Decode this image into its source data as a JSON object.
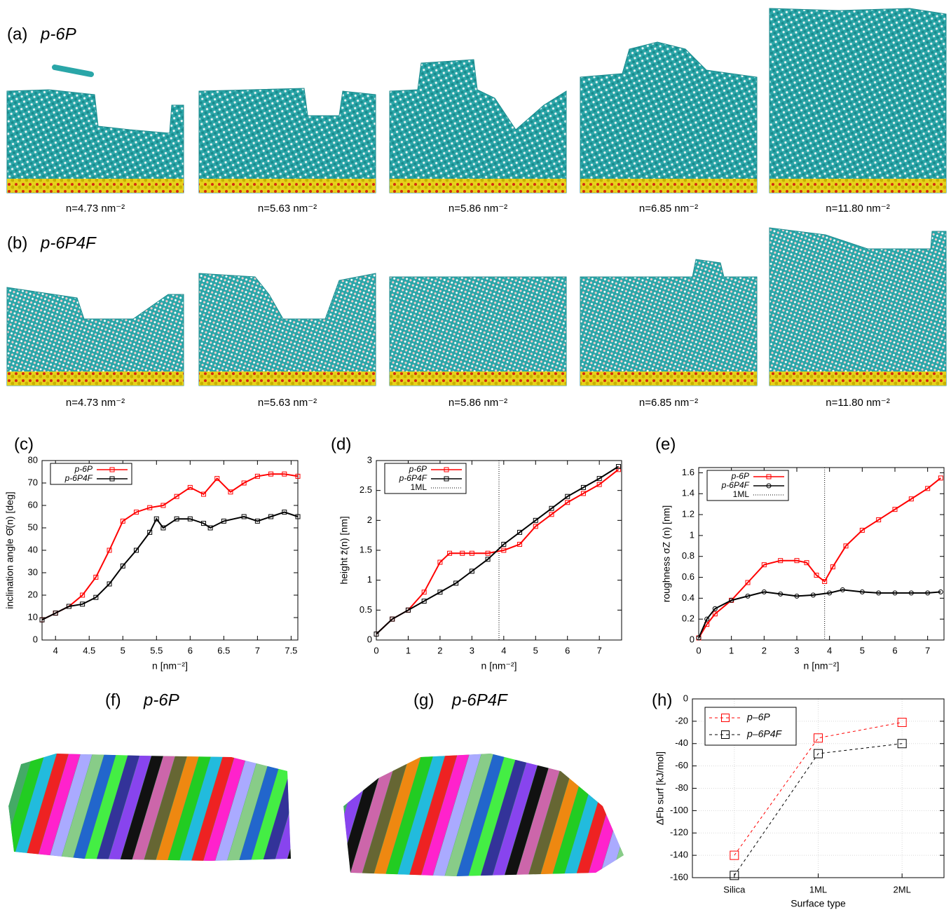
{
  "rows": [
    {
      "label": "(a)",
      "molecule": "p-6P",
      "captions": [
        "n=4.73 nm⁻²",
        "n=5.63 nm⁻²",
        "n=5.86 nm⁻²",
        "n=6.85 nm⁻²",
        "n=11.80 nm⁻²"
      ]
    },
    {
      "label": "(b)",
      "molecule": "p-6P4F",
      "captions": [
        "n=4.73 nm⁻²",
        "n=5.63 nm⁻²",
        "n=5.86 nm⁻²",
        "n=6.85 nm⁻²",
        "n=11.80 nm⁻²"
      ]
    }
  ],
  "snapshots": [
    {
      "label": "(f)",
      "molecule": "p-6P"
    },
    {
      "label": "(g)",
      "molecule": "p-6P4F"
    }
  ],
  "chart_data": [
    {
      "type": "line",
      "panel": "(c)",
      "xlabel": "n [nm⁻²]",
      "ylabel": "inclination angle Θ̄(n) [deg]",
      "xlim": [
        3.8,
        7.6
      ],
      "ylim": [
        0,
        80
      ],
      "xticks": [
        4,
        4.5,
        5,
        5.5,
        6,
        6.5,
        7,
        7.5
      ],
      "yticks": [
        0,
        10,
        20,
        30,
        40,
        50,
        60,
        70,
        80
      ],
      "grid": false,
      "legend": "upper left",
      "series": [
        {
          "name": "p-6P",
          "color": "#ff0000",
          "marker": "square",
          "x": [
            3.8,
            4.0,
            4.2,
            4.4,
            4.6,
            4.8,
            5.0,
            5.2,
            5.4,
            5.6,
            5.8,
            6.0,
            6.2,
            6.4,
            6.6,
            6.8,
            7.0,
            7.2,
            7.4,
            7.6
          ],
          "values": [
            9,
            12,
            15,
            20,
            28,
            40,
            53,
            57,
            59,
            60,
            64,
            68,
            65,
            72,
            66,
            70,
            73,
            74,
            74,
            73
          ]
        },
        {
          "name": "p-6P4F",
          "color": "#000000",
          "marker": "square",
          "x": [
            3.8,
            4.0,
            4.2,
            4.4,
            4.6,
            4.8,
            5.0,
            5.2,
            5.4,
            5.5,
            5.6,
            5.8,
            6.0,
            6.2,
            6.3,
            6.5,
            6.8,
            7.0,
            7.2,
            7.4,
            7.6
          ],
          "values": [
            9,
            12,
            15,
            16,
            19,
            25,
            33,
            40,
            48,
            54,
            50,
            54,
            54,
            52,
            50,
            53,
            55,
            53,
            55,
            57,
            55
          ]
        }
      ]
    },
    {
      "type": "line",
      "panel": "(d)",
      "xlabel": "n [nm⁻²]",
      "ylabel": "height z̄(n) [nm]",
      "xlim": [
        0,
        7.7
      ],
      "ylim": [
        0,
        3
      ],
      "xticks": [
        0,
        1,
        2,
        3,
        4,
        5,
        6,
        7
      ],
      "yticks": [
        0,
        0.5,
        1,
        1.5,
        2,
        2.5,
        3
      ],
      "grid": false,
      "legend": "upper left",
      "vline": {
        "name": "1ML",
        "x": 3.85,
        "color": "#000000"
      },
      "series": [
        {
          "name": "p-6P",
          "color": "#ff0000",
          "marker": "square",
          "x": [
            0,
            0.5,
            1,
            1.5,
            2,
            2.3,
            2.7,
            3,
            3.5,
            4,
            4.5,
            5,
            5.5,
            6,
            6.5,
            7,
            7.6
          ],
          "values": [
            0.1,
            0.35,
            0.5,
            0.8,
            1.3,
            1.45,
            1.45,
            1.45,
            1.45,
            1.5,
            1.6,
            1.9,
            2.1,
            2.3,
            2.45,
            2.6,
            2.85
          ]
        },
        {
          "name": "p-6P4F",
          "color": "#000000",
          "marker": "square",
          "x": [
            0,
            0.5,
            1,
            1.5,
            2,
            2.5,
            3,
            3.5,
            4,
            4.5,
            5,
            5.5,
            6,
            6.5,
            7,
            7.6
          ],
          "values": [
            0.1,
            0.35,
            0.5,
            0.65,
            0.8,
            0.95,
            1.15,
            1.35,
            1.6,
            1.8,
            2.0,
            2.2,
            2.4,
            2.55,
            2.7,
            2.9
          ]
        }
      ]
    },
    {
      "type": "line",
      "panel": "(e)",
      "xlabel": "n [nm⁻²]",
      "ylabel": "roughness σZ (n) [nm]",
      "xlim": [
        0,
        7.5
      ],
      "ylim": [
        0,
        1.65
      ],
      "xticks": [
        0,
        1,
        2,
        3,
        4,
        5,
        6,
        7
      ],
      "yticks": [
        0,
        0.2,
        0.4,
        0.6,
        0.8,
        1,
        1.2,
        1.4,
        1.6
      ],
      "grid": false,
      "legend": "upper left",
      "vline": {
        "name": "1ML",
        "x": 3.85,
        "color": "#000000"
      },
      "series": [
        {
          "name": "p-6P",
          "color": "#ff0000",
          "marker": "square",
          "x": [
            0,
            0.25,
            0.5,
            1,
            1.5,
            2,
            2.5,
            3,
            3.3,
            3.6,
            3.85,
            4.1,
            4.5,
            5,
            5.5,
            6,
            6.5,
            7,
            7.4
          ],
          "values": [
            0.02,
            0.15,
            0.25,
            0.38,
            0.55,
            0.72,
            0.76,
            0.76,
            0.74,
            0.62,
            0.56,
            0.7,
            0.9,
            1.05,
            1.15,
            1.25,
            1.35,
            1.45,
            1.55
          ]
        },
        {
          "name": "p-6P4F",
          "color": "#000000",
          "marker": "circle",
          "x": [
            0,
            0.25,
            0.5,
            1,
            1.5,
            2,
            2.5,
            3,
            3.5,
            4,
            4.4,
            5,
            5.5,
            6,
            6.5,
            7,
            7.4
          ],
          "values": [
            0.02,
            0.2,
            0.3,
            0.38,
            0.42,
            0.46,
            0.44,
            0.42,
            0.43,
            0.45,
            0.48,
            0.46,
            0.45,
            0.45,
            0.45,
            0.45,
            0.46
          ]
        }
      ]
    },
    {
      "type": "category-line",
      "panel": "(h)",
      "xlabel": "Surface type",
      "ylabel": "ΔFb surf [kJ/mol]",
      "categories": [
        "Silica",
        "1ML",
        "2ML"
      ],
      "ylim": [
        -160,
        0
      ],
      "yticks": [
        -160,
        -140,
        -120,
        -100,
        -80,
        -60,
        -40,
        -20,
        0
      ],
      "grid": true,
      "dashed": true,
      "legend": "upper left",
      "series": [
        {
          "name": "p–6P",
          "color": "#ff0000",
          "marker": "square",
          "values": [
            -140,
            -35,
            -21
          ]
        },
        {
          "name": "p–6P4F",
          "color": "#000000",
          "marker": "square",
          "values": [
            -158,
            -49,
            -40
          ]
        }
      ]
    }
  ]
}
